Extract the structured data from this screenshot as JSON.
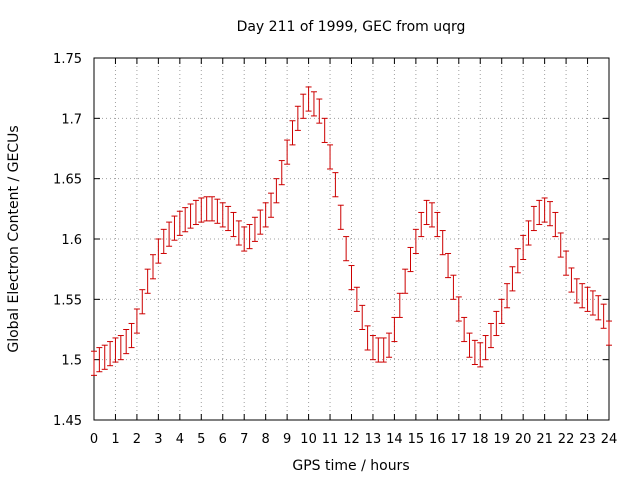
{
  "chart_data": {
    "type": "scatter",
    "title": "Day 211 of 1999, GEC from uqrg",
    "xlabel": "GPS time / hours",
    "ylabel": "Global Electron Content / GECUs",
    "xlim": [
      0,
      24
    ],
    "ylim": [
      1.45,
      1.75
    ],
    "grid": true,
    "xticks": [
      "0",
      "1",
      "2",
      "3",
      "4",
      "5",
      "6",
      "7",
      "8",
      "9",
      "10",
      "11",
      "12",
      "13",
      "14",
      "15",
      "16",
      "17",
      "18",
      "19",
      "20",
      "21",
      "22",
      "23",
      "24"
    ],
    "yticks": [
      "1.45",
      "1.5",
      "1.55",
      "1.6",
      "1.65",
      "1.7",
      "1.75"
    ],
    "error": 0.01,
    "color": "#cc0000",
    "series": [
      {
        "x": [
          0.0,
          0.25,
          0.5,
          0.75,
          1.0,
          1.25,
          1.5,
          1.75,
          2.0,
          2.25,
          2.5,
          2.75,
          3.0,
          3.25,
          3.5,
          3.75,
          4.0,
          4.25,
          4.5,
          4.75,
          5.0,
          5.25,
          5.5,
          5.75,
          6.0,
          6.25,
          6.5,
          6.75,
          7.0,
          7.25,
          7.5,
          7.75,
          8.0,
          8.25,
          8.5,
          8.75,
          9.0,
          9.25,
          9.5,
          9.75,
          10.0,
          10.25,
          10.5,
          10.75,
          11.0,
          11.25,
          11.5,
          11.75,
          12.0,
          12.25,
          12.5,
          12.75,
          13.0,
          13.25,
          13.5,
          13.75,
          14.0,
          14.25,
          14.5,
          14.75,
          15.0,
          15.25,
          15.5,
          15.75,
          16.0,
          16.25,
          16.5,
          16.75,
          17.0,
          17.25,
          17.5,
          17.75,
          18.0,
          18.25,
          18.5,
          18.75,
          19.0,
          19.25,
          19.5,
          19.75,
          20.0,
          20.25,
          20.5,
          20.75,
          21.0,
          21.25,
          21.5,
          21.75,
          22.0,
          22.25,
          22.5,
          22.75,
          23.0,
          23.25,
          23.5,
          23.75,
          24.0
        ],
        "y": [
          1.497,
          1.5,
          1.502,
          1.505,
          1.508,
          1.51,
          1.515,
          1.52,
          1.532,
          1.548,
          1.565,
          1.577,
          1.59,
          1.598,
          1.604,
          1.609,
          1.613,
          1.616,
          1.619,
          1.622,
          1.624,
          1.625,
          1.625,
          1.623,
          1.62,
          1.617,
          1.612,
          1.605,
          1.6,
          1.602,
          1.608,
          1.614,
          1.62,
          1.628,
          1.64,
          1.655,
          1.672,
          1.688,
          1.7,
          1.71,
          1.716,
          1.712,
          1.706,
          1.69,
          1.668,
          1.645,
          1.618,
          1.592,
          1.568,
          1.55,
          1.535,
          1.518,
          1.51,
          1.508,
          1.508,
          1.512,
          1.525,
          1.545,
          1.565,
          1.583,
          1.598,
          1.612,
          1.622,
          1.62,
          1.612,
          1.597,
          1.578,
          1.56,
          1.542,
          1.525,
          1.512,
          1.506,
          1.504,
          1.51,
          1.52,
          1.53,
          1.54,
          1.553,
          1.567,
          1.582,
          1.593,
          1.605,
          1.617,
          1.622,
          1.624,
          1.621,
          1.612,
          1.595,
          1.58,
          1.566,
          1.557,
          1.553,
          1.55,
          1.547,
          1.543,
          1.536,
          1.522
        ]
      }
    ]
  }
}
